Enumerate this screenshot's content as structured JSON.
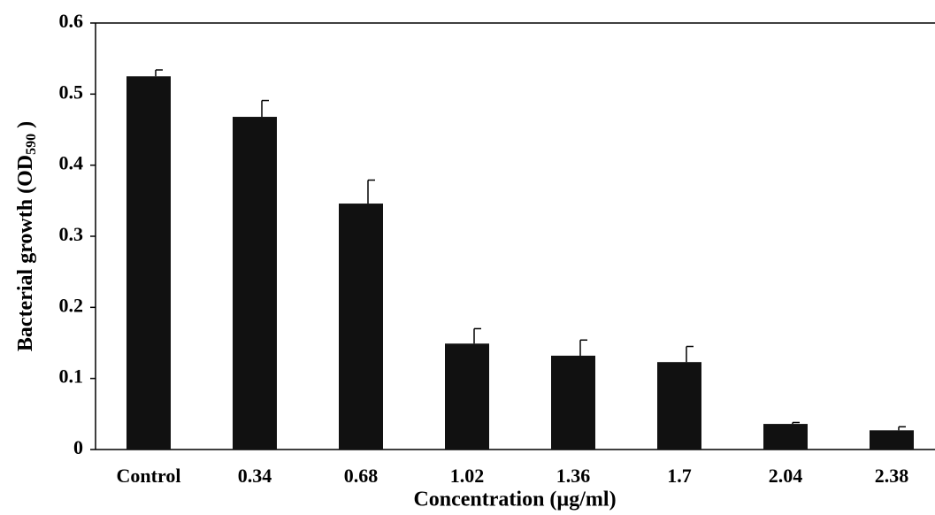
{
  "chart_data": {
    "type": "bar",
    "x_label": "Concentration (µg/ml)",
    "y_label": {
      "text": "Bacterial  growth (OD",
      "subscript": "590",
      "suffix": " )"
    },
    "categories": [
      "Control",
      "0.34",
      "0.68",
      "1.02",
      "1.36",
      "1.7",
      "2.04",
      "2.38"
    ],
    "values": [
      0.525,
      0.468,
      0.346,
      0.149,
      0.132,
      0.123,
      0.036,
      0.027
    ],
    "errors": [
      0.009,
      0.023,
      0.033,
      0.021,
      0.022,
      0.022,
      0.002,
      0.005
    ],
    "color": "#111111",
    "ylim": [
      0,
      0.6
    ],
    "yticks": [
      {
        "value": 0,
        "label": "0"
      },
      0.1,
      0.2,
      0.3,
      0.4,
      0.5,
      0.6
    ]
  }
}
